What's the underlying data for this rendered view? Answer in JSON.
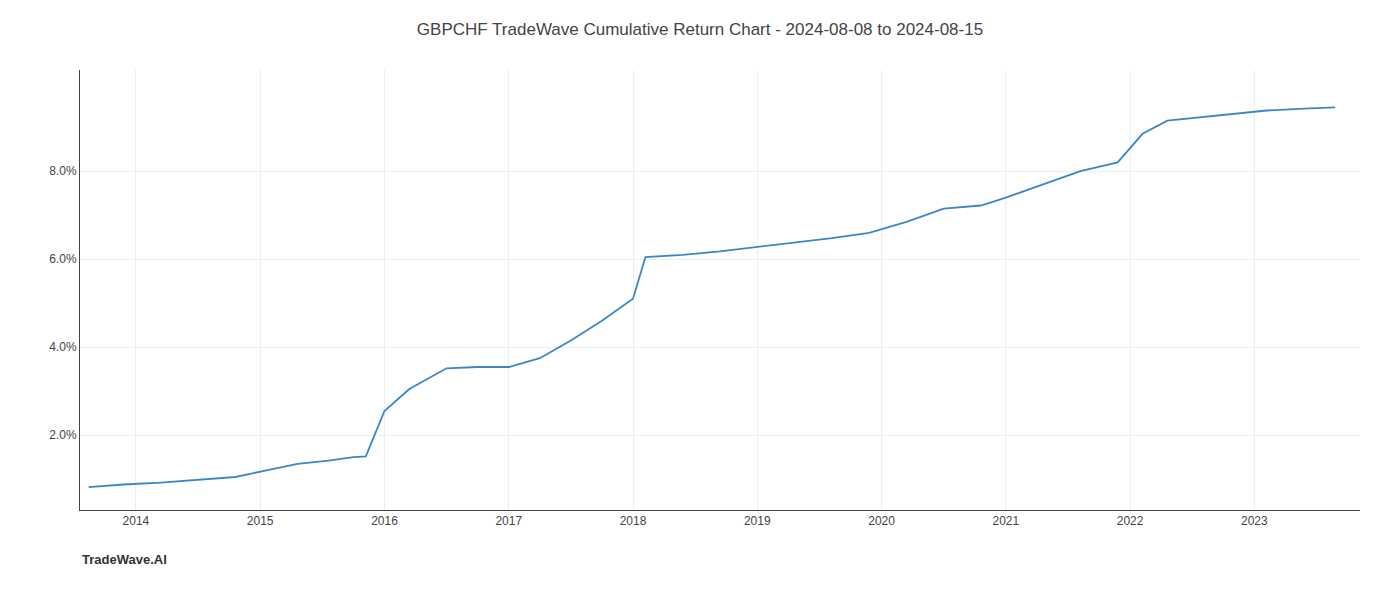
{
  "chart_data": {
    "type": "line",
    "title": "GBPCHF TradeWave Cumulative Return Chart - 2024-08-08 to 2024-08-15",
    "annotations": [
      "TradeWave.AI"
    ],
    "x": [
      2013.62,
      2013.9,
      2014.2,
      2014.5,
      2014.8,
      2015.05,
      2015.3,
      2015.55,
      2015.75,
      2015.85,
      2016.0,
      2016.2,
      2016.5,
      2016.75,
      2017.0,
      2017.25,
      2017.5,
      2017.75,
      2018.0,
      2018.1,
      2018.4,
      2018.7,
      2019.0,
      2019.3,
      2019.6,
      2019.9,
      2020.2,
      2020.5,
      2020.8,
      2021.0,
      2021.3,
      2021.6,
      2021.9,
      2022.1,
      2022.3,
      2022.55,
      2022.75,
      2022.9,
      2023.1,
      2023.4,
      2023.65
    ],
    "values": [
      0.82,
      0.88,
      0.92,
      0.98,
      1.05,
      1.2,
      1.35,
      1.42,
      1.5,
      1.52,
      2.55,
      3.05,
      3.52,
      3.55,
      3.55,
      3.75,
      4.15,
      4.6,
      5.1,
      6.05,
      6.1,
      6.18,
      6.28,
      6.38,
      6.48,
      6.6,
      6.85,
      7.15,
      7.22,
      7.4,
      7.7,
      8.0,
      8.2,
      8.85,
      9.15,
      9.22,
      9.28,
      9.33,
      9.38,
      9.42,
      9.45
    ],
    "color": "#3a87c8",
    "xlim": [
      2013.55,
      2023.85
    ],
    "ylim": [
      0.3,
      10.3
    ],
    "xticks": [
      2014,
      2015,
      2016,
      2017,
      2018,
      2019,
      2020,
      2021,
      2022,
      2023
    ],
    "yticks": [
      {
        "value": 2.0,
        "label": "2.0%"
      },
      {
        "value": 4.0,
        "label": "4.0%"
      },
      {
        "value": 6.0,
        "label": "6.0%"
      },
      {
        "value": 8.0,
        "label": "8.0%"
      }
    ],
    "grid": true
  }
}
